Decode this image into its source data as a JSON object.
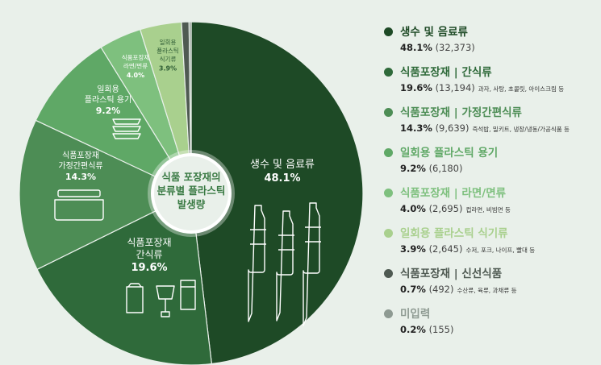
{
  "chart_data": {
    "type": "pie",
    "center_label": [
      "식품 포장재의",
      "분류별 플라스틱",
      "발생량"
    ],
    "series": [
      {
        "name": "생수 및 음료류",
        "short": [
          "생수 및 음료류"
        ],
        "value": 48.1,
        "pct_label": "48.1%",
        "count": "(32,373)",
        "note": "",
        "color": "#1e4a26",
        "icon": "bottle-icon"
      },
      {
        "name": "식품포장재 | 간식류",
        "short": [
          "식품포장재",
          "간식류"
        ],
        "value": 19.6,
        "pct_label": "19.6%",
        "count": "(13,194)",
        "note": "과자, 사탕, 초콜릿, 아이스크림 등",
        "color": "#2f6a3a",
        "icon": "snack-package-icon"
      },
      {
        "name": "식품포장재 | 가정간편식류",
        "short": [
          "식품포장재",
          "가정간편식류"
        ],
        "value": 14.3,
        "pct_label": "14.3%",
        "count": "(9,639)",
        "note": "즉석밥, 밀키트, 냉장/냉동/가공식품 등",
        "color": "#4d8d55",
        "icon": "container-icon"
      },
      {
        "name": "일회용 플라스틱 용기",
        "short": [
          "일회용",
          "플라스틱 용기"
        ],
        "value": 9.2,
        "pct_label": "9.2%",
        "count": "(6,180)",
        "note": "",
        "color": "#5fa866",
        "icon": "bowl-icon"
      },
      {
        "name": "식품포장재 | 라면/면류",
        "short": [
          "식품포장재",
          "라면/면류"
        ],
        "value": 4.0,
        "pct_label": "4.0%",
        "count": "(2,695)",
        "note": "컵라면, 비빔면 등",
        "color": "#7ec07e",
        "icon": ""
      },
      {
        "name": "일회용 플라스틱 식기류",
        "short": [
          "일회용",
          "플라스틱",
          "식기류"
        ],
        "value": 3.9,
        "pct_label": "3.9%",
        "count": "(2,645)",
        "note": "수저, 포크, 나이프, 빨대 등",
        "color": "#a9d08e",
        "icon": ""
      },
      {
        "name": "식품포장재 | 신선식품",
        "short": [],
        "value": 0.7,
        "pct_label": "0.7%",
        "count": "(492)",
        "note": "수산류, 육류, 과채류 등",
        "color": "#4f5a52",
        "icon": ""
      },
      {
        "name": "미입력",
        "short": [],
        "value": 0.2,
        "pct_label": "0.2%",
        "count": "(155)",
        "note": "",
        "color": "#8e9a92",
        "icon": ""
      }
    ]
  }
}
